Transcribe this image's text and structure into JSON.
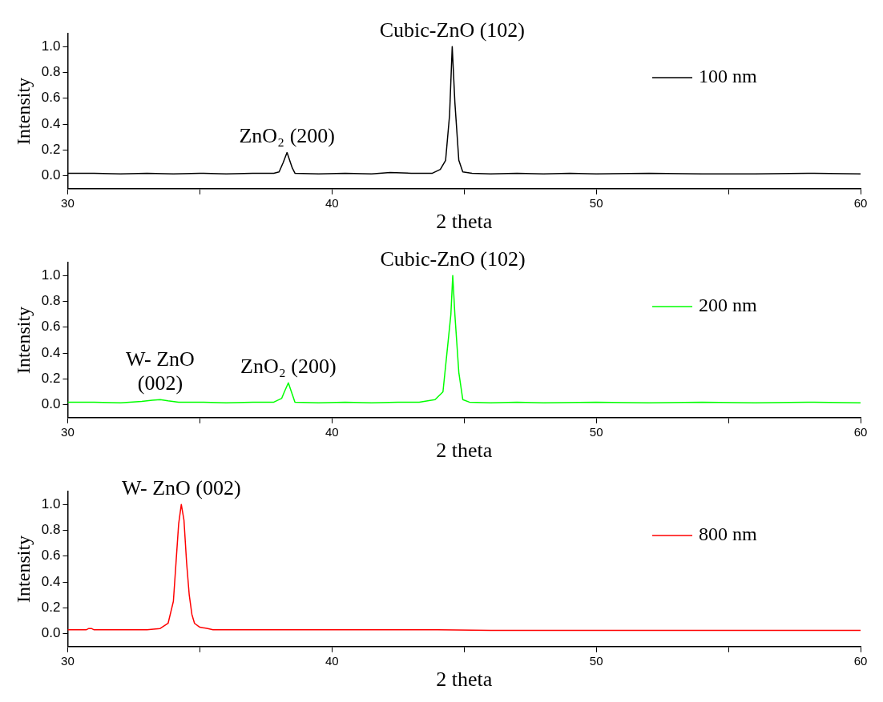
{
  "chart_data": [
    {
      "type": "line",
      "xlabel": "2 theta",
      "ylabel": "Intensity",
      "xlim": [
        30,
        60
      ],
      "xticks": [
        30,
        {
          "value": 35,
          "label": null
        },
        40,
        {
          "value": 45,
          "label": null
        },
        50,
        {
          "value": 55,
          "label": null
        },
        60
      ],
      "ylim": [
        -0.1,
        1.1
      ],
      "yticks": [
        {
          "value": 0,
          "label": "0.0"
        },
        {
          "value": 0.2,
          "label": "0.2"
        },
        {
          "value": 0.4,
          "label": "0.4"
        },
        {
          "value": 0.6,
          "label": "0.6"
        },
        {
          "value": 0.8,
          "label": "0.8"
        },
        {
          "value": 1,
          "label": "1.0"
        }
      ],
      "grid": false,
      "legend": "top right",
      "marker": "none",
      "line_style": "solid",
      "annotations": [
        {
          "text": "ZnO₂ (200)",
          "x": 38.3,
          "y": 0.18
        },
        {
          "text": "Cubic-ZnO (102)",
          "x": 44.55,
          "y": 1.0
        }
      ],
      "series": [
        {
          "name": "100 nm",
          "color": "#000000",
          "x": [
            30,
            31,
            32,
            33,
            34,
            35,
            36,
            37,
            37.8,
            38.0,
            38.15,
            38.3,
            38.4,
            38.5,
            38.6,
            39.5,
            40.5,
            41.5,
            42.2,
            43,
            43.8,
            44.1,
            44.3,
            44.45,
            44.55,
            44.65,
            44.8,
            44.95,
            45.3,
            46,
            47,
            48,
            49,
            50,
            52,
            54,
            56,
            58,
            60
          ],
          "values": [
            0.02,
            0.02,
            0.015,
            0.02,
            0.015,
            0.02,
            0.015,
            0.02,
            0.02,
            0.03,
            0.1,
            0.18,
            0.12,
            0.06,
            0.02,
            0.015,
            0.02,
            0.015,
            0.025,
            0.02,
            0.02,
            0.05,
            0.12,
            0.47,
            1.0,
            0.57,
            0.12,
            0.03,
            0.02,
            0.015,
            0.02,
            0.015,
            0.02,
            0.015,
            0.02,
            0.015,
            0.015,
            0.02,
            0.015
          ]
        }
      ]
    },
    {
      "type": "line",
      "xlabel": "2 theta",
      "ylabel": "Intensity",
      "xlim": [
        30,
        60
      ],
      "xticks": [
        30,
        {
          "value": 35,
          "label": null
        },
        40,
        {
          "value": 45,
          "label": null
        },
        50,
        {
          "value": 55,
          "label": null
        },
        60
      ],
      "ylim": [
        -0.1,
        1.1
      ],
      "yticks": [
        {
          "value": 0,
          "label": "0.0"
        },
        {
          "value": 0.2,
          "label": "0.2"
        },
        {
          "value": 0.4,
          "label": "0.4"
        },
        {
          "value": 0.6,
          "label": "0.6"
        },
        {
          "value": 0.8,
          "label": "0.8"
        },
        {
          "value": 1,
          "label": "1.0"
        }
      ],
      "grid": false,
      "legend": "top right",
      "marker": "none",
      "line_style": "solid",
      "annotations": [
        {
          "text": "W- ZnO\n(002)",
          "x": 33.5,
          "y": 0.04
        },
        {
          "text": "ZnO₂ (200)",
          "x": 38.35,
          "y": 0.17
        },
        {
          "text": "Cubic-ZnO (102)",
          "x": 44.57,
          "y": 1.0
        }
      ],
      "series": [
        {
          "name": "200 nm",
          "color": "#00ff00",
          "x": [
            30,
            31,
            32,
            32.8,
            33.2,
            33.5,
            33.8,
            34.2,
            35,
            36,
            37,
            37.8,
            38.1,
            38.2,
            38.35,
            38.5,
            38.6,
            39.5,
            40.5,
            41.5,
            42.5,
            43.3,
            43.9,
            44.2,
            44.35,
            44.5,
            44.57,
            44.65,
            44.8,
            44.95,
            45.2,
            46,
            47,
            48,
            50,
            52,
            54,
            56,
            58,
            60
          ],
          "values": [
            0.02,
            0.02,
            0.015,
            0.025,
            0.035,
            0.04,
            0.03,
            0.02,
            0.02,
            0.015,
            0.02,
            0.02,
            0.05,
            0.1,
            0.17,
            0.08,
            0.02,
            0.015,
            0.02,
            0.015,
            0.02,
            0.02,
            0.04,
            0.1,
            0.4,
            0.7,
            1.0,
            0.7,
            0.25,
            0.04,
            0.02,
            0.015,
            0.02,
            0.015,
            0.02,
            0.015,
            0.02,
            0.015,
            0.02,
            0.015
          ]
        }
      ]
    },
    {
      "type": "line",
      "xlabel": "2 theta",
      "ylabel": "Intensity",
      "xlim": [
        30,
        60
      ],
      "xticks": [
        30,
        {
          "value": 35,
          "label": null
        },
        40,
        {
          "value": 45,
          "label": null
        },
        50,
        {
          "value": 55,
          "label": null
        },
        60
      ],
      "ylim": [
        -0.1,
        1.1
      ],
      "yticks": [
        {
          "value": 0,
          "label": "0.0"
        },
        {
          "value": 0.2,
          "label": "0.2"
        },
        {
          "value": 0.4,
          "label": "0.4"
        },
        {
          "value": 0.6,
          "label": "0.6"
        },
        {
          "value": 0.8,
          "label": "0.8"
        },
        {
          "value": 1,
          "label": "1.0"
        }
      ],
      "grid": false,
      "legend": "top right",
      "marker": "none",
      "line_style": "solid",
      "annotations": [
        {
          "text": "W- ZnO (002)",
          "x": 34.3,
          "y": 1.0
        }
      ],
      "series": [
        {
          "name": "800 nm",
          "color": "#ff0000",
          "x": [
            30,
            30.7,
            30.8,
            30.9,
            31,
            32,
            33,
            33.5,
            33.8,
            34.0,
            34.1,
            34.2,
            34.3,
            34.4,
            34.5,
            34.6,
            34.7,
            34.8,
            35.0,
            35.3,
            35.5,
            36,
            38,
            40,
            42,
            44,
            46,
            48,
            50,
            52,
            54,
            56,
            58,
            60
          ],
          "values": [
            0.03,
            0.03,
            0.04,
            0.04,
            0.03,
            0.03,
            0.03,
            0.04,
            0.08,
            0.25,
            0.55,
            0.85,
            1.0,
            0.88,
            0.55,
            0.3,
            0.15,
            0.08,
            0.05,
            0.04,
            0.03,
            0.03,
            0.03,
            0.03,
            0.03,
            0.03,
            0.025,
            0.025,
            0.025,
            0.025,
            0.025,
            0.025,
            0.025,
            0.025
          ]
        }
      ]
    }
  ]
}
